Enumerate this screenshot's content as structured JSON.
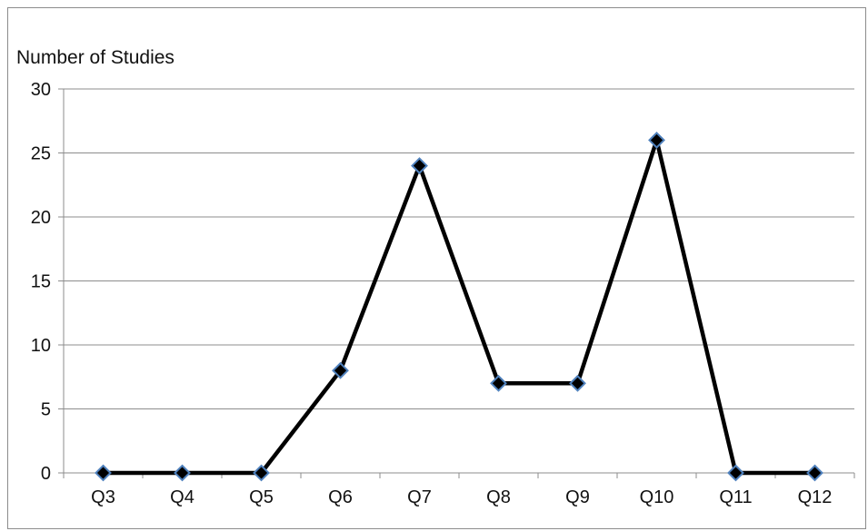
{
  "chart_data": {
    "type": "line",
    "ylabel": "Number of Studies",
    "xlabel": "",
    "title": "",
    "categories": [
      "Q3",
      "Q4",
      "Q5",
      "Q6",
      "Q7",
      "Q8",
      "Q9",
      "Q10",
      "Q11",
      "Q12"
    ],
    "series": [
      {
        "values": [
          0,
          0,
          0,
          8,
          24,
          7,
          7,
          26,
          0,
          0
        ]
      }
    ],
    "ylim": [
      0,
      30
    ],
    "yticks": [
      0,
      5,
      10,
      15,
      20,
      25,
      30
    ],
    "grid": "horizontal",
    "legend": "none",
    "colors": {
      "line": "#000000",
      "marker_fill": "#000000",
      "marker_edge": "#4f81bd",
      "grid": "#8c8c8c",
      "frame": "#8c8c8c"
    }
  }
}
